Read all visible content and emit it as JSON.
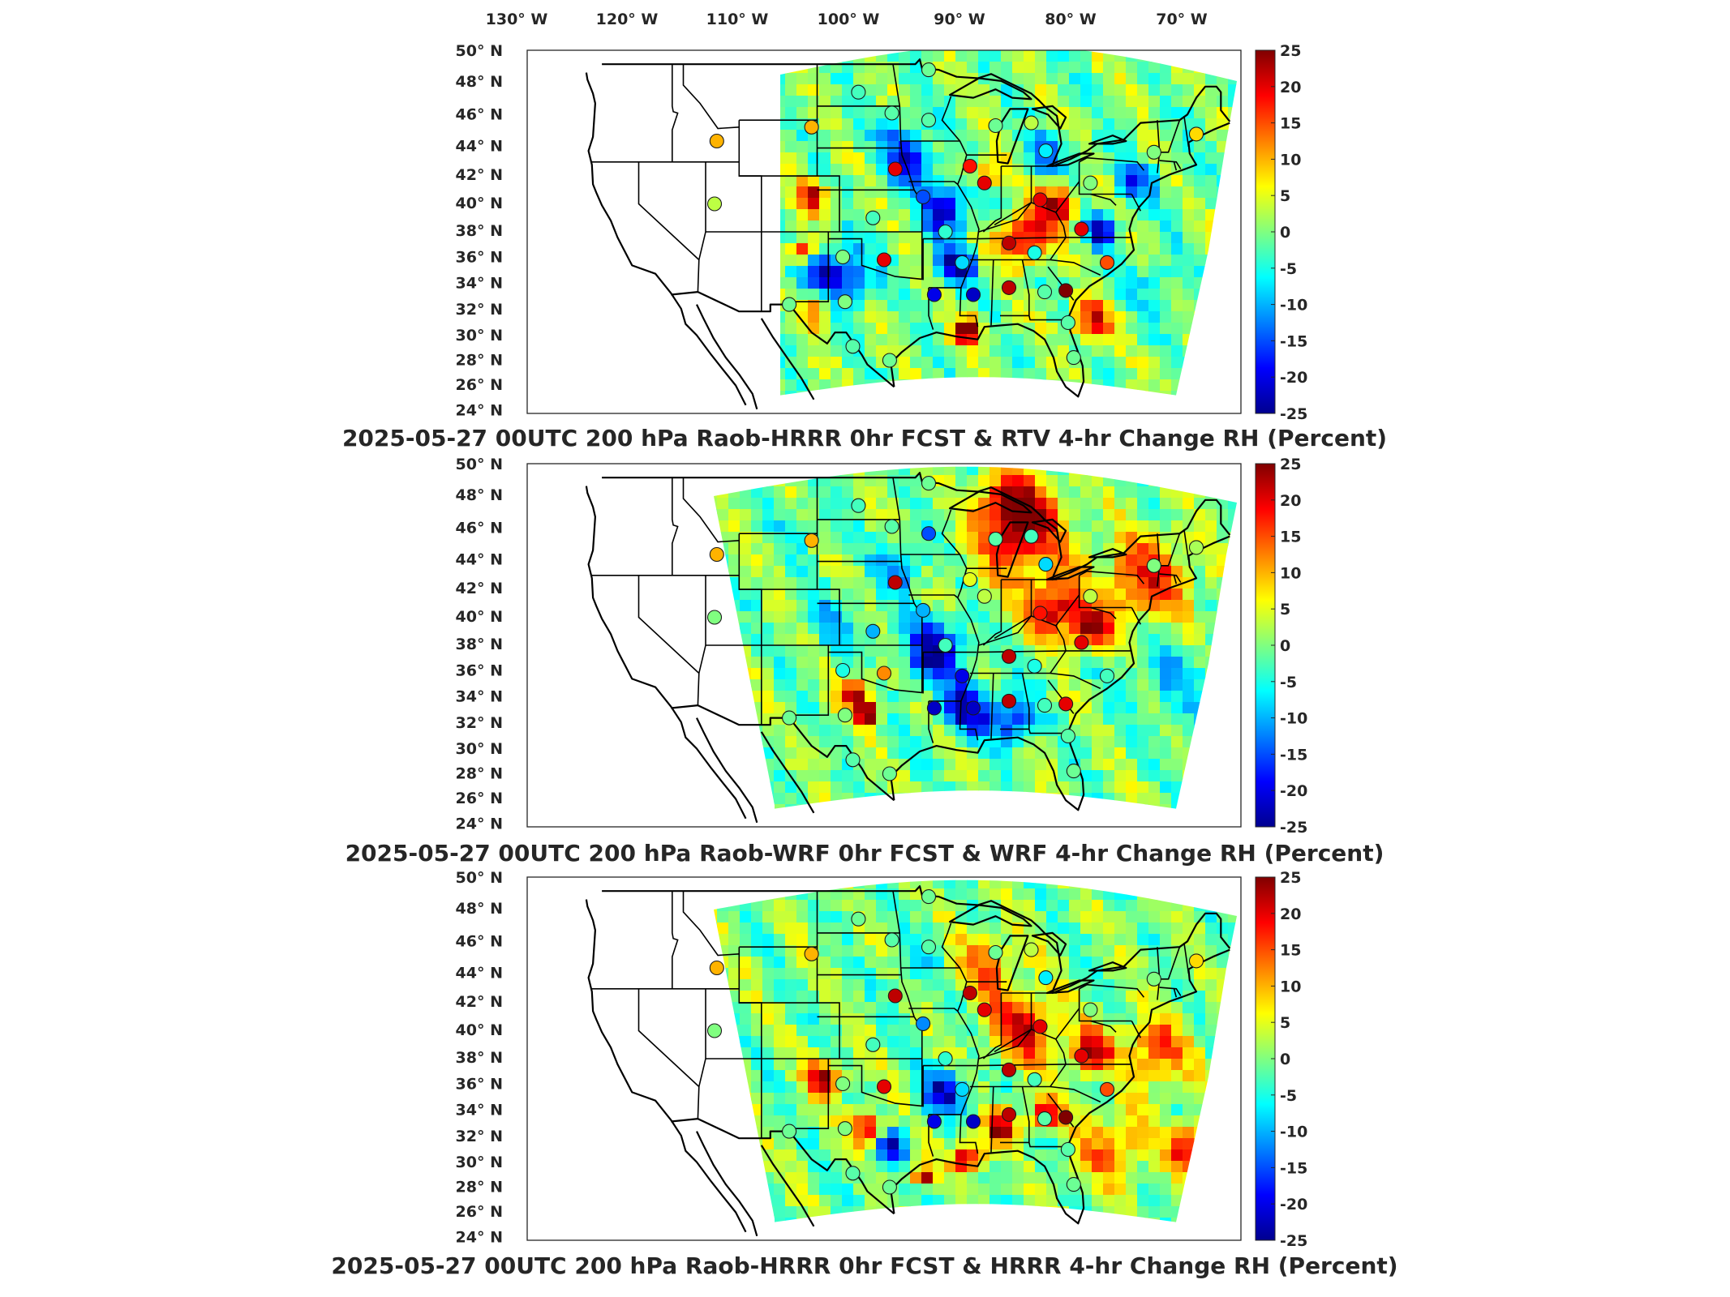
{
  "lon_labels": [
    "130",
    "120",
    "110",
    "100",
    "90",
    "80",
    "70"
  ],
  "lon_suffix": "W",
  "lat_labels": [
    "50",
    "48",
    "46",
    "44",
    "42",
    "40",
    "38",
    "36",
    "34",
    "32",
    "30",
    "28",
    "26",
    "24"
  ],
  "lat_suffix": "N",
  "colorbar_ticks": [
    "25",
    "20",
    "15",
    "10",
    "5",
    "0",
    "-5",
    "-10",
    "-15",
    "-20",
    "-25"
  ],
  "colorbar_range": [
    -25,
    25
  ],
  "colormap": "jet",
  "colorbar_colors": [
    "#00008f",
    "#0000ff",
    "#0080ff",
    "#00ffff",
    "#80ff80",
    "#ffff00",
    "#ff8000",
    "#ff0000",
    "#800000"
  ],
  "panels": [
    {
      "title": "2025-05-27 00UTC 200 hPa Raob-HRRR 0hr FCST & RTV 4-hr Change RH (Percent)",
      "stations": [
        {
          "lon": -113.0,
          "lat": 43.5,
          "value": 10
        },
        {
          "lon": -113.2,
          "lat": 39.0,
          "value": 3
        },
        {
          "lon": -100.3,
          "lat": 47.0,
          "value": -3
        },
        {
          "lon": -97.3,
          "lat": 45.5,
          "value": -2
        },
        {
          "lon": -104.5,
          "lat": 44.5,
          "value": 10
        },
        {
          "lon": -94.0,
          "lat": 48.6,
          "value": -1
        },
        {
          "lon": -94.0,
          "lat": 45.0,
          "value": -2
        },
        {
          "lon": -97.0,
          "lat": 41.5,
          "value": 20
        },
        {
          "lon": -90.3,
          "lat": 41.7,
          "value": 18
        },
        {
          "lon": -94.5,
          "lat": 39.5,
          "value": -15
        },
        {
          "lon": -89.0,
          "lat": 40.5,
          "value": 20
        },
        {
          "lon": -99.0,
          "lat": 38.0,
          "value": -3
        },
        {
          "lon": -98.0,
          "lat": 35.0,
          "value": 20
        },
        {
          "lon": -92.5,
          "lat": 37.0,
          "value": -4
        },
        {
          "lon": -91.0,
          "lat": 34.8,
          "value": -8
        },
        {
          "lon": -93.5,
          "lat": 32.5,
          "value": -20
        },
        {
          "lon": -90.0,
          "lat": 32.5,
          "value": -22
        },
        {
          "lon": -86.8,
          "lat": 36.2,
          "value": 22
        },
        {
          "lon": -86.8,
          "lat": 33.0,
          "value": 22
        },
        {
          "lon": -84.5,
          "lat": 35.5,
          "value": -5
        },
        {
          "lon": -83.6,
          "lat": 32.7,
          "value": -2
        },
        {
          "lon": -81.7,
          "lat": 32.8,
          "value": 25
        },
        {
          "lon": -78.0,
          "lat": 34.8,
          "value": 15
        },
        {
          "lon": -80.3,
          "lat": 37.2,
          "value": 20
        },
        {
          "lon": -84.0,
          "lat": 39.3,
          "value": 20
        },
        {
          "lon": -79.5,
          "lat": 40.5,
          "value": 0
        },
        {
          "lon": -83.5,
          "lat": 42.8,
          "value": -7
        },
        {
          "lon": -84.8,
          "lat": 44.8,
          "value": 3
        },
        {
          "lon": -88.0,
          "lat": 44.6,
          "value": -1
        },
        {
          "lon": -73.8,
          "lat": 42.7,
          "value": 0
        },
        {
          "lon": -70.0,
          "lat": 44.0,
          "value": 8
        },
        {
          "lon": -101.5,
          "lat": 32.0,
          "value": 0
        },
        {
          "lon": -106.5,
          "lat": 31.8,
          "value": -1
        },
        {
          "lon": -100.8,
          "lat": 28.8,
          "value": -2
        },
        {
          "lon": -97.5,
          "lat": 27.8,
          "value": -1
        },
        {
          "lon": -81.0,
          "lat": 28.0,
          "value": -1
        },
        {
          "lon": -81.5,
          "lat": 30.5,
          "value": -2
        },
        {
          "lon": -101.7,
          "lat": 35.2,
          "value": 0
        }
      ]
    },
    {
      "title": "2025-05-27 00UTC 200 hPa Raob-WRF 0hr FCST & WRF 4-hr Change RH (Percent)",
      "stations": [
        {
          "lon": -113.0,
          "lat": 43.5,
          "value": 10
        },
        {
          "lon": -113.2,
          "lat": 39.0,
          "value": 0
        },
        {
          "lon": -100.3,
          "lat": 47.0,
          "value": -3
        },
        {
          "lon": -97.3,
          "lat": 45.5,
          "value": -2
        },
        {
          "lon": -104.5,
          "lat": 44.5,
          "value": 10
        },
        {
          "lon": -94.0,
          "lat": 48.6,
          "value": -1
        },
        {
          "lon": -94.0,
          "lat": 45.0,
          "value": -15
        },
        {
          "lon": -97.0,
          "lat": 41.5,
          "value": 22
        },
        {
          "lon": -90.3,
          "lat": 41.7,
          "value": 5
        },
        {
          "lon": -94.5,
          "lat": 39.5,
          "value": -10
        },
        {
          "lon": -89.0,
          "lat": 40.5,
          "value": 3
        },
        {
          "lon": -99.0,
          "lat": 38.0,
          "value": -10
        },
        {
          "lon": -98.0,
          "lat": 35.0,
          "value": 12
        },
        {
          "lon": -92.5,
          "lat": 37.0,
          "value": -3
        },
        {
          "lon": -91.0,
          "lat": 34.8,
          "value": -20
        },
        {
          "lon": -93.5,
          "lat": 32.5,
          "value": -22
        },
        {
          "lon": -90.0,
          "lat": 32.5,
          "value": -22
        },
        {
          "lon": -86.8,
          "lat": 36.2,
          "value": 22
        },
        {
          "lon": -86.8,
          "lat": 33.0,
          "value": 22
        },
        {
          "lon": -84.5,
          "lat": 35.5,
          "value": -5
        },
        {
          "lon": -83.6,
          "lat": 32.7,
          "value": -3
        },
        {
          "lon": -81.7,
          "lat": 32.8,
          "value": 20
        },
        {
          "lon": -78.0,
          "lat": 34.8,
          "value": -3
        },
        {
          "lon": -80.3,
          "lat": 37.2,
          "value": 20
        },
        {
          "lon": -84.0,
          "lat": 39.3,
          "value": 18
        },
        {
          "lon": -79.5,
          "lat": 40.5,
          "value": 3
        },
        {
          "lon": -83.5,
          "lat": 42.8,
          "value": -8
        },
        {
          "lon": -84.8,
          "lat": 44.8,
          "value": -3
        },
        {
          "lon": -88.0,
          "lat": 44.6,
          "value": -2
        },
        {
          "lon": -73.8,
          "lat": 42.7,
          "value": 0
        },
        {
          "lon": -70.0,
          "lat": 44.0,
          "value": 2
        },
        {
          "lon": -101.5,
          "lat": 32.0,
          "value": 0
        },
        {
          "lon": -106.5,
          "lat": 31.8,
          "value": -1
        },
        {
          "lon": -100.8,
          "lat": 28.8,
          "value": -2
        },
        {
          "lon": -97.5,
          "lat": 27.8,
          "value": -1
        },
        {
          "lon": -81.0,
          "lat": 28.0,
          "value": -1
        },
        {
          "lon": -81.5,
          "lat": 30.5,
          "value": -2
        },
        {
          "lon": -101.7,
          "lat": 35.2,
          "value": -5
        }
      ]
    },
    {
      "title": "2025-05-27 00UTC 200 hPa Raob-HRRR 0hr FCST & HRRR 4-hr Change RH (Percent)",
      "stations": [
        {
          "lon": -113.0,
          "lat": 43.5,
          "value": 10
        },
        {
          "lon": -113.2,
          "lat": 39.0,
          "value": 0
        },
        {
          "lon": -100.3,
          "lat": 47.0,
          "value": -1
        },
        {
          "lon": -97.3,
          "lat": 45.5,
          "value": -2
        },
        {
          "lon": -104.5,
          "lat": 44.5,
          "value": 10
        },
        {
          "lon": -94.0,
          "lat": 48.6,
          "value": -1
        },
        {
          "lon": -94.0,
          "lat": 45.0,
          "value": -2
        },
        {
          "lon": -97.0,
          "lat": 41.5,
          "value": 22
        },
        {
          "lon": -90.3,
          "lat": 41.7,
          "value": 22
        },
        {
          "lon": -94.5,
          "lat": 39.5,
          "value": -12
        },
        {
          "lon": -89.0,
          "lat": 40.5,
          "value": 20
        },
        {
          "lon": -99.0,
          "lat": 38.0,
          "value": -3
        },
        {
          "lon": -98.0,
          "lat": 35.0,
          "value": 20
        },
        {
          "lon": -92.5,
          "lat": 37.0,
          "value": -4
        },
        {
          "lon": -91.0,
          "lat": 34.8,
          "value": -8
        },
        {
          "lon": -93.5,
          "lat": 32.5,
          "value": -20
        },
        {
          "lon": -90.0,
          "lat": 32.5,
          "value": -22
        },
        {
          "lon": -86.8,
          "lat": 36.2,
          "value": 22
        },
        {
          "lon": -86.8,
          "lat": 33.0,
          "value": 22
        },
        {
          "lon": -84.5,
          "lat": 35.5,
          "value": -3
        },
        {
          "lon": -83.6,
          "lat": 32.7,
          "value": -2
        },
        {
          "lon": -81.7,
          "lat": 32.8,
          "value": 25
        },
        {
          "lon": -78.0,
          "lat": 34.8,
          "value": 15
        },
        {
          "lon": -80.3,
          "lat": 37.2,
          "value": 20
        },
        {
          "lon": -84.0,
          "lat": 39.3,
          "value": 20
        },
        {
          "lon": -79.5,
          "lat": 40.5,
          "value": 0
        },
        {
          "lon": -83.5,
          "lat": 42.8,
          "value": -7
        },
        {
          "lon": -84.8,
          "lat": 44.8,
          "value": 3
        },
        {
          "lon": -88.0,
          "lat": 44.6,
          "value": -1
        },
        {
          "lon": -73.8,
          "lat": 42.7,
          "value": 0
        },
        {
          "lon": -70.0,
          "lat": 44.0,
          "value": 8
        },
        {
          "lon": -101.5,
          "lat": 32.0,
          "value": 0
        },
        {
          "lon": -106.5,
          "lat": 31.8,
          "value": -1
        },
        {
          "lon": -100.8,
          "lat": 28.8,
          "value": -2
        },
        {
          "lon": -97.5,
          "lat": 27.8,
          "value": -1
        },
        {
          "lon": -81.0,
          "lat": 28.0,
          "value": -1
        },
        {
          "lon": -81.5,
          "lat": 30.5,
          "value": -2
        },
        {
          "lon": -101.7,
          "lat": 35.2,
          "value": 0
        }
      ]
    }
  ]
}
